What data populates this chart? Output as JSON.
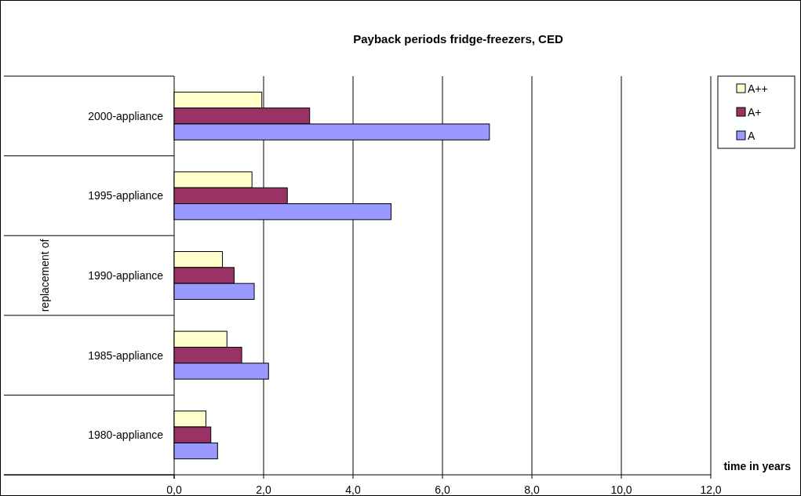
{
  "chart_data": {
    "type": "bar",
    "orientation": "horizontal",
    "title": "Payback periods fridge-freezers, CED",
    "xlabel": "time in years",
    "ylabel": "replacement of",
    "categories": [
      "2000-appliance",
      "1995-appliance",
      "1990-appliance",
      "1985-appliance",
      "1980-appliance"
    ],
    "series": [
      {
        "name": "A++",
        "color": "#ffffcc",
        "values": [
          1.96,
          1.74,
          1.08,
          1.18,
          0.71
        ]
      },
      {
        "name": "A+",
        "color": "#993366",
        "values": [
          3.03,
          2.53,
          1.34,
          1.51,
          0.82
        ]
      },
      {
        "name": "A",
        "color": "#9999ff",
        "values": [
          7.05,
          4.85,
          1.79,
          2.11,
          0.97
        ]
      }
    ],
    "xlim": [
      0,
      12
    ],
    "xticks": [
      {
        "value": 0,
        "label": "0,0"
      },
      {
        "value": 2,
        "label": "2,0"
      },
      {
        "value": 4,
        "label": "4,0"
      },
      {
        "value": 6,
        "label": "6,0"
      },
      {
        "value": 8,
        "label": "8,0"
      },
      {
        "value": 10,
        "label": "10,0"
      },
      {
        "value": 12,
        "label": "12,0"
      }
    ],
    "grid": "x",
    "legend": "right"
  }
}
